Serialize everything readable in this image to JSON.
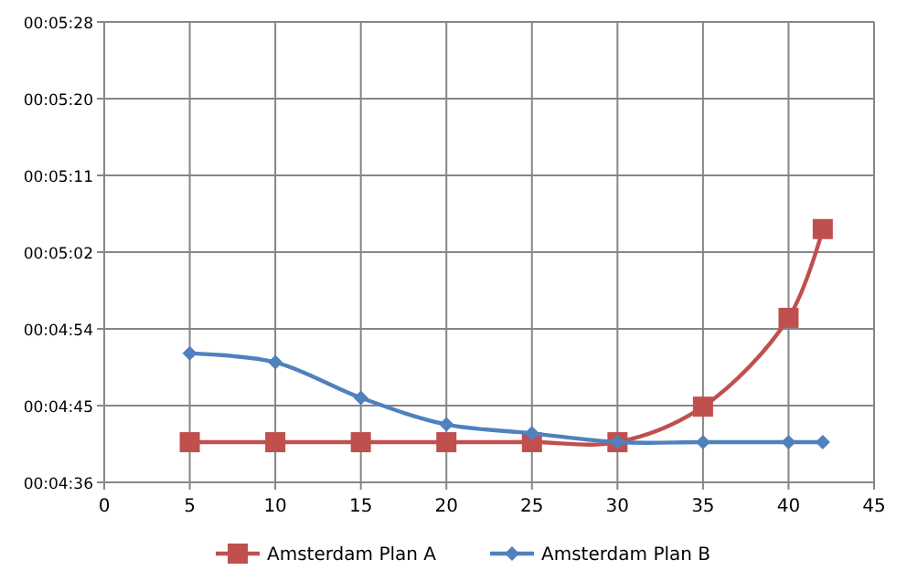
{
  "chart_data": {
    "type": "line",
    "x": [
      5,
      10,
      15,
      20,
      25,
      30,
      35,
      40,
      42
    ],
    "series": [
      {
        "name": "Amsterdam Plan A",
        "color": "#c0504d",
        "marker": "square",
        "values": [
          281,
          281,
          281,
          281,
          281,
          281,
          285,
          295,
          305
        ]
      },
      {
        "name": "Amsterdam Plan B",
        "color": "#4f81bd",
        "marker": "diamond",
        "values": [
          291,
          290,
          286,
          283,
          282,
          281,
          281,
          281,
          281
        ]
      }
    ],
    "xlim": [
      0,
      45
    ],
    "xticks": [
      0,
      5,
      10,
      15,
      20,
      25,
      30,
      35,
      40,
      45
    ],
    "ylim": [
      276.48,
      328.32
    ],
    "yticks": [
      {
        "value": 276.48,
        "label": "00:04:36"
      },
      {
        "value": 285.12,
        "label": "00:04:45"
      },
      {
        "value": 293.76,
        "label": "00:04:54"
      },
      {
        "value": 302.4,
        "label": "00:05:02"
      },
      {
        "value": 311.04,
        "label": "00:05:11"
      },
      {
        "value": 319.68,
        "label": "00:05:20"
      },
      {
        "value": 328.32,
        "label": "00:05:28"
      }
    ],
    "grid": true,
    "legend": "bottom"
  }
}
